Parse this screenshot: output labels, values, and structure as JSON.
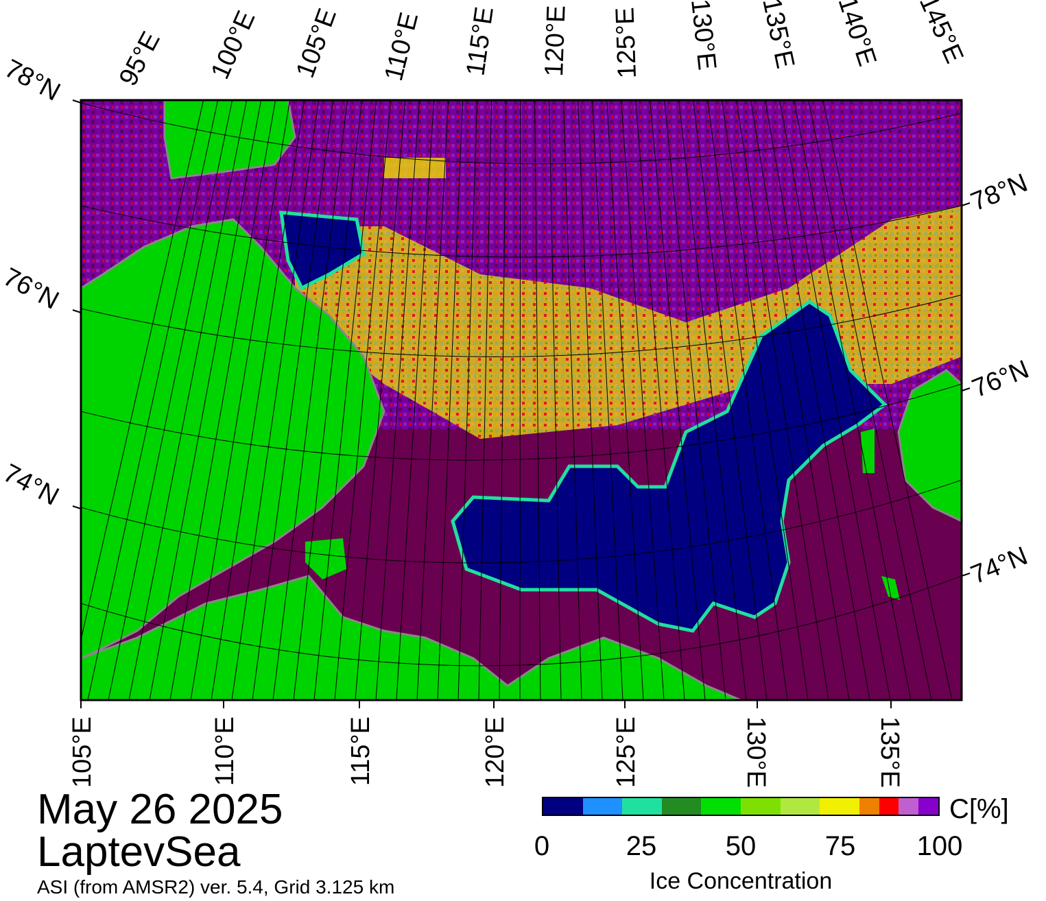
{
  "title": {
    "date": "May 26 2025",
    "region": "LaptevSea",
    "product": "ASI (from AMSR2) ver. 5.4,  Grid 3.125 km"
  },
  "colors": {
    "land": "#00d400",
    "land_mask": "#888888",
    "open_water_label_color": "#6a0050",
    "frame": "#000000"
  },
  "top_lon_labels": [
    "95°E",
    "100°E",
    "105°E",
    "110°E",
    "115°E",
    "120°E",
    "125°E",
    "130°E",
    "135°E",
    "140°E",
    "145°E"
  ],
  "bottom_lon_labels": [
    "105°E",
    "110°E",
    "115°E",
    "120°E",
    "125°E",
    "130°E",
    "135°E"
  ],
  "left_lat_labels": [
    "78°N",
    "76°N",
    "74°N"
  ],
  "right_lat_labels": [
    "78°N",
    "76°N",
    "74°N"
  ],
  "colorbar": {
    "title": "Ice Concentration",
    "unit": "C[%]",
    "ticks": [
      "0",
      "25",
      "50",
      "75",
      "100"
    ],
    "segments": [
      {
        "from": 0,
        "to": 10,
        "color": "#000080"
      },
      {
        "from": 10,
        "to": 20,
        "color": "#1e90ff"
      },
      {
        "from": 20,
        "to": 30,
        "color": "#20e0a0"
      },
      {
        "from": 30,
        "to": 40,
        "color": "#228b22"
      },
      {
        "from": 40,
        "to": 50,
        "color": "#00e000"
      },
      {
        "from": 50,
        "to": 60,
        "color": "#7ee000"
      },
      {
        "from": 60,
        "to": 70,
        "color": "#b0e840"
      },
      {
        "from": 70,
        "to": 80,
        "color": "#f0f000"
      },
      {
        "from": 80,
        "to": 85,
        "color": "#f08000"
      },
      {
        "from": 85,
        "to": 90,
        "color": "#ff0000"
      },
      {
        "from": 90,
        "to": 95,
        "color": "#c060d0"
      },
      {
        "from": 95,
        "to": 100,
        "color": "#8800cc"
      }
    ]
  }
}
